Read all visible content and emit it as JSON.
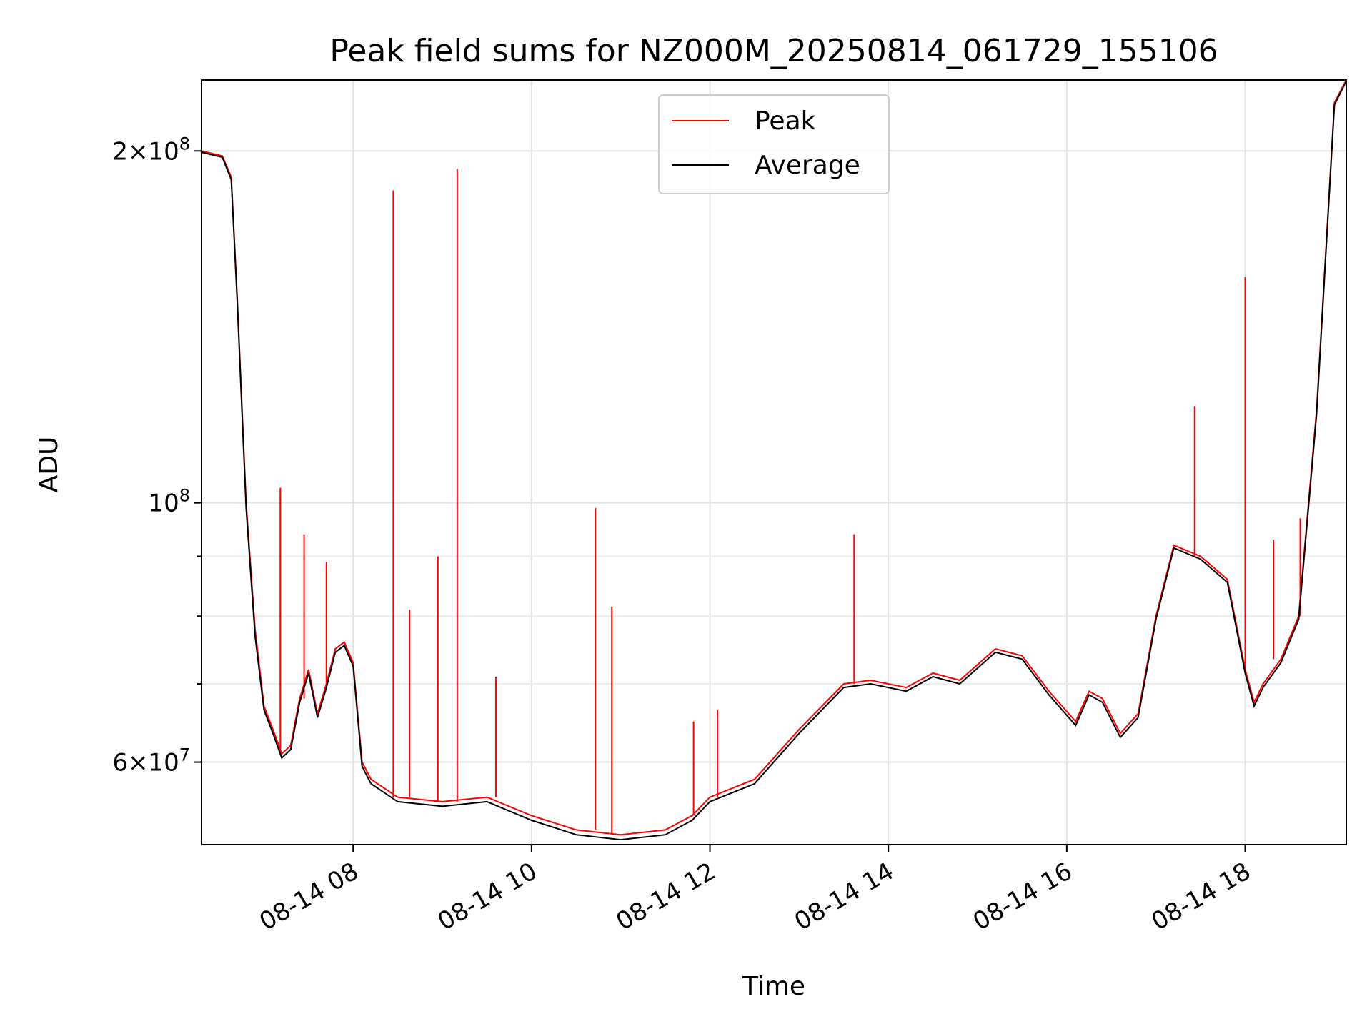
{
  "chart_data": {
    "type": "line",
    "title": "Peak field sums for NZ000M_20250814_061729_155106",
    "xlabel": "Time",
    "ylabel": "ADU",
    "yscale": "log",
    "ylim": [
      51000000,
      230000000
    ],
    "xlim": [
      "2025-08-14 06:18",
      "2025-08-14 19:08"
    ],
    "grid": true,
    "legend_position": "top-center",
    "x_ticks": [
      {
        "label": "08-14 08",
        "value": "2025-08-14 08:00"
      },
      {
        "label": "08-14 10",
        "value": "2025-08-14 10:00"
      },
      {
        "label": "08-14 12",
        "value": "2025-08-14 12:00"
      },
      {
        "label": "08-14 14",
        "value": "2025-08-14 14:00"
      },
      {
        "label": "08-14 16",
        "value": "2025-08-14 16:00"
      },
      {
        "label": "08-14 18",
        "value": "2025-08-14 18:00"
      }
    ],
    "y_major_ticks": [
      {
        "base": "6",
        "exp": "7",
        "value": 60000000
      },
      {
        "base": "",
        "exp": "8",
        "value": 100000000
      },
      {
        "base": "2",
        "exp": "8",
        "value": 200000000
      }
    ],
    "y_minor_ticks": [
      70000000,
      80000000,
      90000000
    ],
    "series": [
      {
        "name": "Peak",
        "color": "#ff0000",
        "x": [
          "2025-08-14 06:18",
          "2025-08-14 06:32",
          "2025-08-14 06:38",
          "2025-08-14 06:42",
          "2025-08-14 06:48",
          "2025-08-14 06:54",
          "2025-08-14 07:00",
          "2025-08-14 07:06",
          "2025-08-14 07:12",
          "2025-08-14 07:18",
          "2025-08-14 07:24",
          "2025-08-14 07:30",
          "2025-08-14 07:36",
          "2025-08-14 07:42",
          "2025-08-14 07:48",
          "2025-08-14 07:54",
          "2025-08-14 08:00",
          "2025-08-14 08:06",
          "2025-08-14 08:12",
          "2025-08-14 08:30",
          "2025-08-14 09:00",
          "2025-08-14 09:30",
          "2025-08-14 10:00",
          "2025-08-14 10:30",
          "2025-08-14 11:00",
          "2025-08-14 11:30",
          "2025-08-14 11:48",
          "2025-08-14 12:00",
          "2025-08-14 12:30",
          "2025-08-14 13:00",
          "2025-08-14 13:30",
          "2025-08-14 13:48",
          "2025-08-14 14:12",
          "2025-08-14 14:30",
          "2025-08-14 14:48",
          "2025-08-14 15:12",
          "2025-08-14 15:30",
          "2025-08-14 15:48",
          "2025-08-14 16:06",
          "2025-08-14 16:15",
          "2025-08-14 16:24",
          "2025-08-14 16:36",
          "2025-08-14 16:48",
          "2025-08-14 17:00",
          "2025-08-14 17:12",
          "2025-08-14 17:30",
          "2025-08-14 17:48",
          "2025-08-14 18:00",
          "2025-08-14 18:06",
          "2025-08-14 18:12",
          "2025-08-14 18:24",
          "2025-08-14 18:36",
          "2025-08-14 18:48",
          "2025-08-14 19:00",
          "2025-08-14 19:08"
        ],
        "y": [
          200000000,
          198000000,
          190000000,
          150000000,
          100000000,
          78000000,
          67000000,
          64000000,
          61000000,
          62000000,
          68000000,
          72000000,
          66000000,
          70000000,
          75000000,
          76000000,
          73000000,
          60000000,
          58000000,
          56000000,
          55500000,
          56000000,
          54000000,
          52500000,
          52000000,
          52500000,
          54000000,
          56000000,
          58000000,
          64000000,
          70000000,
          70500000,
          69500000,
          71500000,
          70500000,
          75000000,
          74000000,
          69000000,
          65000000,
          69000000,
          68000000,
          63500000,
          66000000,
          80000000,
          92000000,
          90000000,
          86000000,
          72000000,
          67500000,
          70000000,
          73500000,
          80000000,
          120000000,
          220000000,
          230000000
        ],
        "spikes": [
          {
            "x": "2025-08-14 07:11",
            "y": 103000000
          },
          {
            "x": "2025-08-14 07:27",
            "y": 94000000
          },
          {
            "x": "2025-08-14 07:42",
            "y": 89000000
          },
          {
            "x": "2025-08-14 08:27",
            "y": 185000000
          },
          {
            "x": "2025-08-14 08:38",
            "y": 81000000
          },
          {
            "x": "2025-08-14 08:57",
            "y": 90000000
          },
          {
            "x": "2025-08-14 09:10",
            "y": 193000000
          },
          {
            "x": "2025-08-14 09:36",
            "y": 71000000
          },
          {
            "x": "2025-08-14 10:43",
            "y": 99000000
          },
          {
            "x": "2025-08-14 10:54",
            "y": 81500000
          },
          {
            "x": "2025-08-14 11:49",
            "y": 65000000
          },
          {
            "x": "2025-08-14 12:05",
            "y": 66500000
          },
          {
            "x": "2025-08-14 13:37",
            "y": 94000000
          },
          {
            "x": "2025-08-14 17:26",
            "y": 121000000
          },
          {
            "x": "2025-08-14 18:00",
            "y": 156000000
          },
          {
            "x": "2025-08-14 18:19",
            "y": 93000000
          },
          {
            "x": "2025-08-14 18:37",
            "y": 97000000
          }
        ]
      },
      {
        "name": "Average",
        "color": "#000000",
        "x": [
          "2025-08-14 06:18",
          "2025-08-14 06:32",
          "2025-08-14 06:38",
          "2025-08-14 06:42",
          "2025-08-14 06:48",
          "2025-08-14 06:54",
          "2025-08-14 07:00",
          "2025-08-14 07:06",
          "2025-08-14 07:12",
          "2025-08-14 07:18",
          "2025-08-14 07:24",
          "2025-08-14 07:30",
          "2025-08-14 07:36",
          "2025-08-14 07:42",
          "2025-08-14 07:48",
          "2025-08-14 07:54",
          "2025-08-14 08:00",
          "2025-08-14 08:06",
          "2025-08-14 08:12",
          "2025-08-14 08:30",
          "2025-08-14 09:00",
          "2025-08-14 09:30",
          "2025-08-14 10:00",
          "2025-08-14 10:30",
          "2025-08-14 11:00",
          "2025-08-14 11:30",
          "2025-08-14 11:48",
          "2025-08-14 12:00",
          "2025-08-14 12:30",
          "2025-08-14 13:00",
          "2025-08-14 13:30",
          "2025-08-14 13:48",
          "2025-08-14 14:12",
          "2025-08-14 14:30",
          "2025-08-14 14:48",
          "2025-08-14 15:12",
          "2025-08-14 15:30",
          "2025-08-14 15:48",
          "2025-08-14 16:06",
          "2025-08-14 16:15",
          "2025-08-14 16:24",
          "2025-08-14 16:36",
          "2025-08-14 16:48",
          "2025-08-14 17:00",
          "2025-08-14 17:12",
          "2025-08-14 17:30",
          "2025-08-14 17:48",
          "2025-08-14 18:00",
          "2025-08-14 18:06",
          "2025-08-14 18:12",
          "2025-08-14 18:24",
          "2025-08-14 18:36",
          "2025-08-14 18:48",
          "2025-08-14 19:00",
          "2025-08-14 19:08"
        ],
        "y": [
          199500000,
          197500000,
          189000000,
          149000000,
          99000000,
          77000000,
          66500000,
          63500000,
          60500000,
          61500000,
          67500000,
          71500000,
          65500000,
          69500000,
          74500000,
          75500000,
          72500000,
          59500000,
          57500000,
          55500000,
          55000000,
          55500000,
          53500000,
          52000000,
          51500000,
          52000000,
          53500000,
          55500000,
          57500000,
          63500000,
          69500000,
          70000000,
          69000000,
          71000000,
          70000000,
          74500000,
          73500000,
          68500000,
          64500000,
          68500000,
          67500000,
          63000000,
          65500000,
          79500000,
          91500000,
          89500000,
          85500000,
          71500000,
          67000000,
          69500000,
          73000000,
          79500000,
          119000000,
          219000000,
          229500000
        ]
      }
    ]
  }
}
